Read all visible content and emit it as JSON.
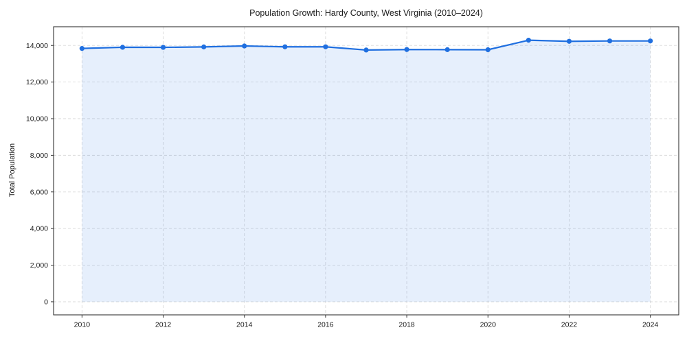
{
  "chart_data": {
    "type": "line",
    "title": "Population Growth: Hardy County, West Virginia (2010–2024)",
    "xlabel": "",
    "ylabel": "Total Population",
    "x": [
      2010,
      2011,
      2012,
      2013,
      2014,
      2015,
      2016,
      2017,
      2018,
      2019,
      2020,
      2021,
      2022,
      2023,
      2024
    ],
    "series": [
      {
        "name": "Total Population",
        "values": [
          13835,
          13900,
          13895,
          13920,
          13970,
          13925,
          13925,
          13750,
          13775,
          13770,
          13765,
          14285,
          14225,
          14245,
          14245
        ]
      }
    ],
    "xlim": [
      2009.3,
      2024.7
    ],
    "ylim": [
      -715,
      15020
    ],
    "xticks": {
      "values": [
        2010,
        2012,
        2014,
        2016,
        2018,
        2020,
        2022,
        2024
      ],
      "labels": [
        "2010",
        "2012",
        "2014",
        "2016",
        "2018",
        "2020",
        "2022",
        "2024"
      ]
    },
    "yticks": {
      "values": [
        0,
        2000,
        4000,
        6000,
        8000,
        10000,
        12000,
        14000
      ],
      "labels": [
        "0",
        "2,000",
        "4,000",
        "6,000",
        "8,000",
        "10,000",
        "12,000",
        "14,000"
      ]
    },
    "grid": true,
    "grid_style": "dashed",
    "legend": false,
    "area_fill": true,
    "style": {
      "line_color": "#1f6fe0",
      "marker_color": "#1f6fe0",
      "fill_color": "#1f6fe0",
      "fill_opacity": 0.11,
      "grid_color": "#d9d9d9",
      "spine_color": "#333333",
      "tick_color": "#333333",
      "text_color": "#1a1a1a"
    }
  }
}
